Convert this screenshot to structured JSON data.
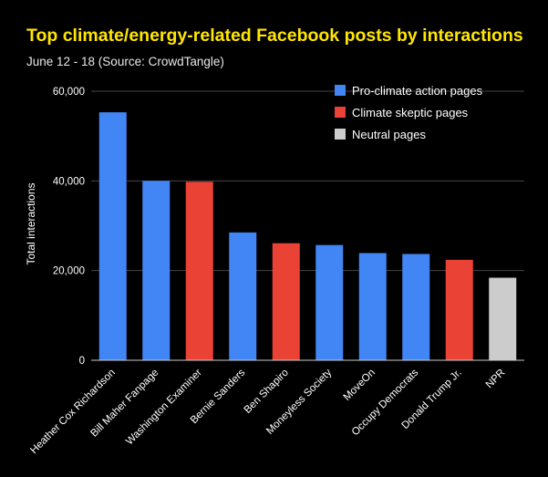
{
  "chart_data": {
    "type": "bar",
    "title": "Top climate/energy-related Facebook posts by interactions",
    "subtitle": "June 12 - 18 (Source: CrowdTangle)",
    "xlabel": "",
    "ylabel": "Total interactions",
    "ylim": [
      0,
      60000
    ],
    "yticks": [
      0,
      20000,
      40000,
      60000
    ],
    "ytick_labels": [
      "0",
      "20,000",
      "40,000",
      "60,000"
    ],
    "grid": true,
    "legend_position": "top-right",
    "categories": [
      "Heather Cox Richardson",
      "Bill Maher Fanpage",
      "Washington Examiner",
      "Bernie Sanders",
      "Ben Shapiro",
      "Moneyless Society",
      "MoveOn",
      "Occupy Democrats",
      "Donald Trump Jr.",
      "NPR"
    ],
    "values": [
      55300,
      40000,
      39800,
      28500,
      26100,
      25700,
      23900,
      23700,
      22400,
      18400
    ],
    "groups": [
      "pro",
      "pro",
      "skeptic",
      "pro",
      "skeptic",
      "pro",
      "pro",
      "pro",
      "skeptic",
      "neutral"
    ],
    "legend": [
      {
        "key": "pro",
        "name": "Pro-climate action pages",
        "color": "#4285f4"
      },
      {
        "key": "skeptic",
        "name": "Climate skeptic pages",
        "color": "#ea4335"
      },
      {
        "key": "neutral",
        "name": "Neutral pages",
        "color": "#cccccc"
      }
    ],
    "colors": {
      "title": "#ffe600",
      "background": "#000000",
      "grid": "#444444",
      "axis": "#cccccc"
    }
  }
}
